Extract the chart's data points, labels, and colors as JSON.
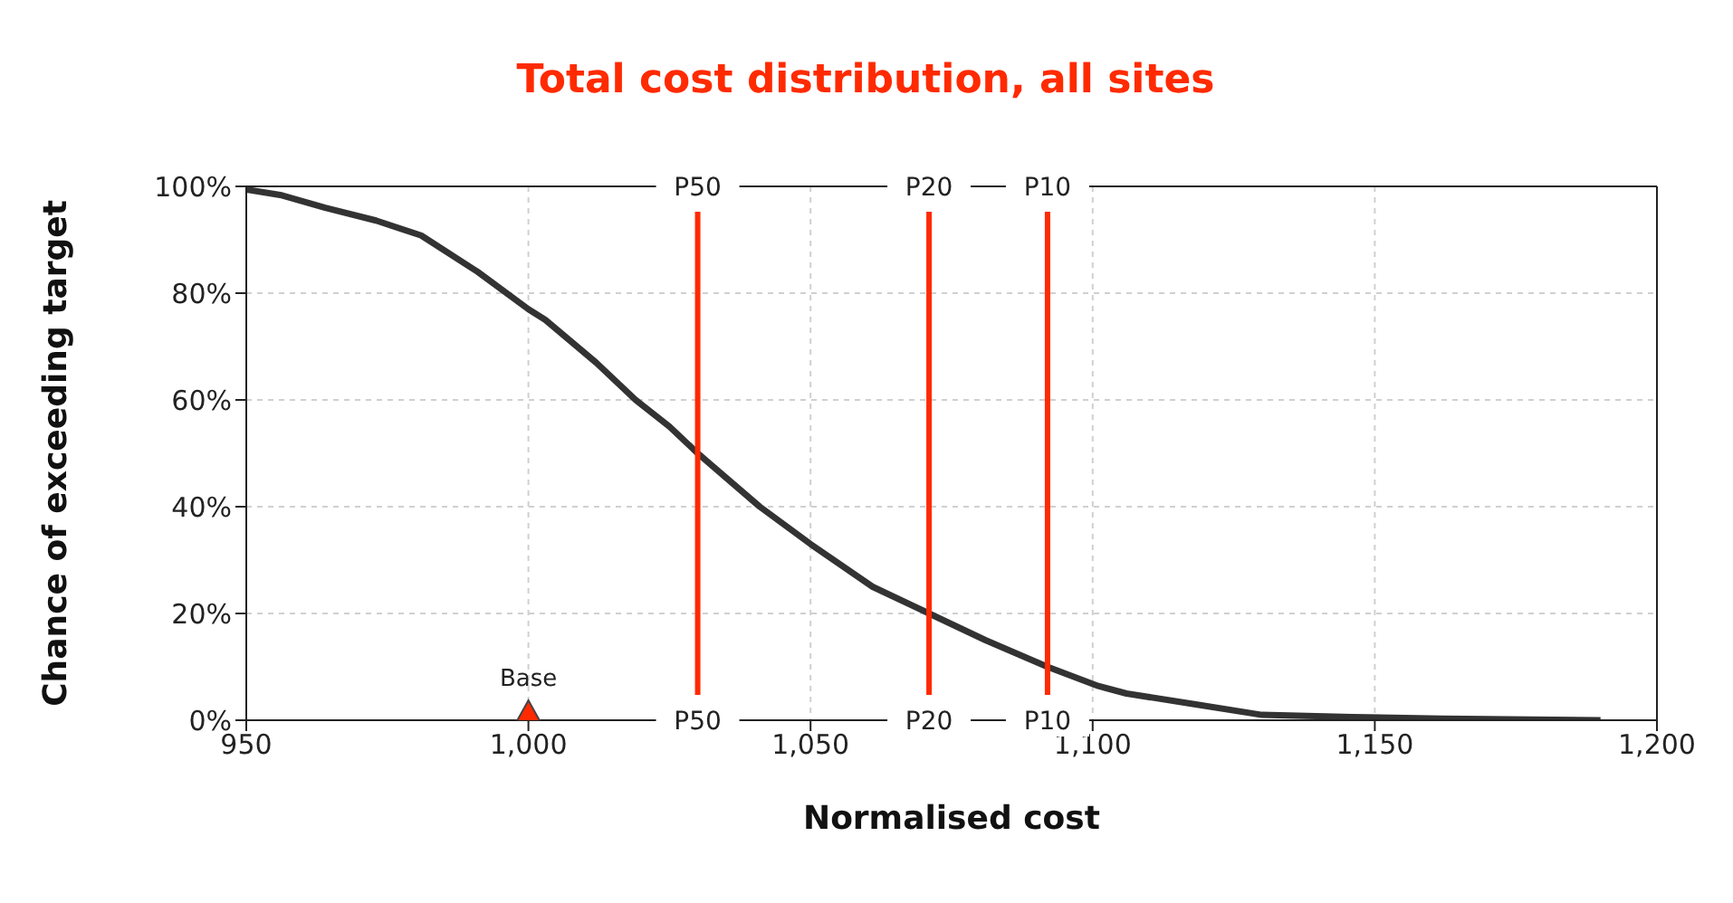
{
  "chart_data": {
    "type": "line",
    "title": "Total cost distribution, all sites",
    "xlabel": "Normalised cost",
    "ylabel": "Chance of exceeding target",
    "series": [
      {
        "color": "#333333",
        "x": [
          950,
          956,
          964,
          973,
          981,
          991,
          1000,
          1003,
          1012,
          1019,
          1025,
          1030,
          1041,
          1050,
          1061,
          1071,
          1081,
          1092,
          1101,
          1106,
          1118,
          1130,
          1146,
          1162,
          1190
        ],
        "values": [
          99.4,
          98.4,
          96,
          93.6,
          90.8,
          84,
          77,
          75,
          67,
          60,
          55,
          50,
          40,
          33,
          25,
          20,
          15,
          10,
          6.4,
          5,
          3,
          1,
          0.6,
          0.3,
          0
        ]
      },
      {
        "type": "scatter",
        "name": "Base",
        "color": "#ff2a00",
        "marker": "triangle",
        "x": [
          1000
        ],
        "values": [
          0
        ]
      }
    ],
    "xlim": [
      950,
      1200
    ],
    "xticks": [
      {
        "value": 950,
        "label": "950"
      },
      {
        "value": 1000,
        "label": "1,000"
      },
      {
        "value": 1050,
        "label": "1,050"
      },
      {
        "value": 1100,
        "label": "1,100"
      },
      {
        "value": 1150,
        "label": "1,150"
      },
      {
        "value": 1200,
        "label": "1,200"
      }
    ],
    "ylim": [
      0,
      100
    ],
    "yticks": [
      {
        "value": 0,
        "label": "0%"
      },
      {
        "value": 20,
        "label": "20%"
      },
      {
        "value": 40,
        "label": "40%"
      },
      {
        "value": 60,
        "label": "60%"
      },
      {
        "value": 80,
        "label": "80%"
      },
      {
        "value": 100,
        "label": "100%"
      }
    ],
    "ref_lines": [
      {
        "axis": "x",
        "value": 1030,
        "label": "P50",
        "color": "#ff2a00"
      },
      {
        "axis": "x",
        "value": 1071,
        "label": "P20",
        "color": "#ff2a00"
      },
      {
        "axis": "x",
        "value": 1092,
        "label": "P10",
        "color": "#ff2a00"
      }
    ],
    "grid": true,
    "legend": false,
    "marker": "none",
    "line_style": "solid"
  }
}
